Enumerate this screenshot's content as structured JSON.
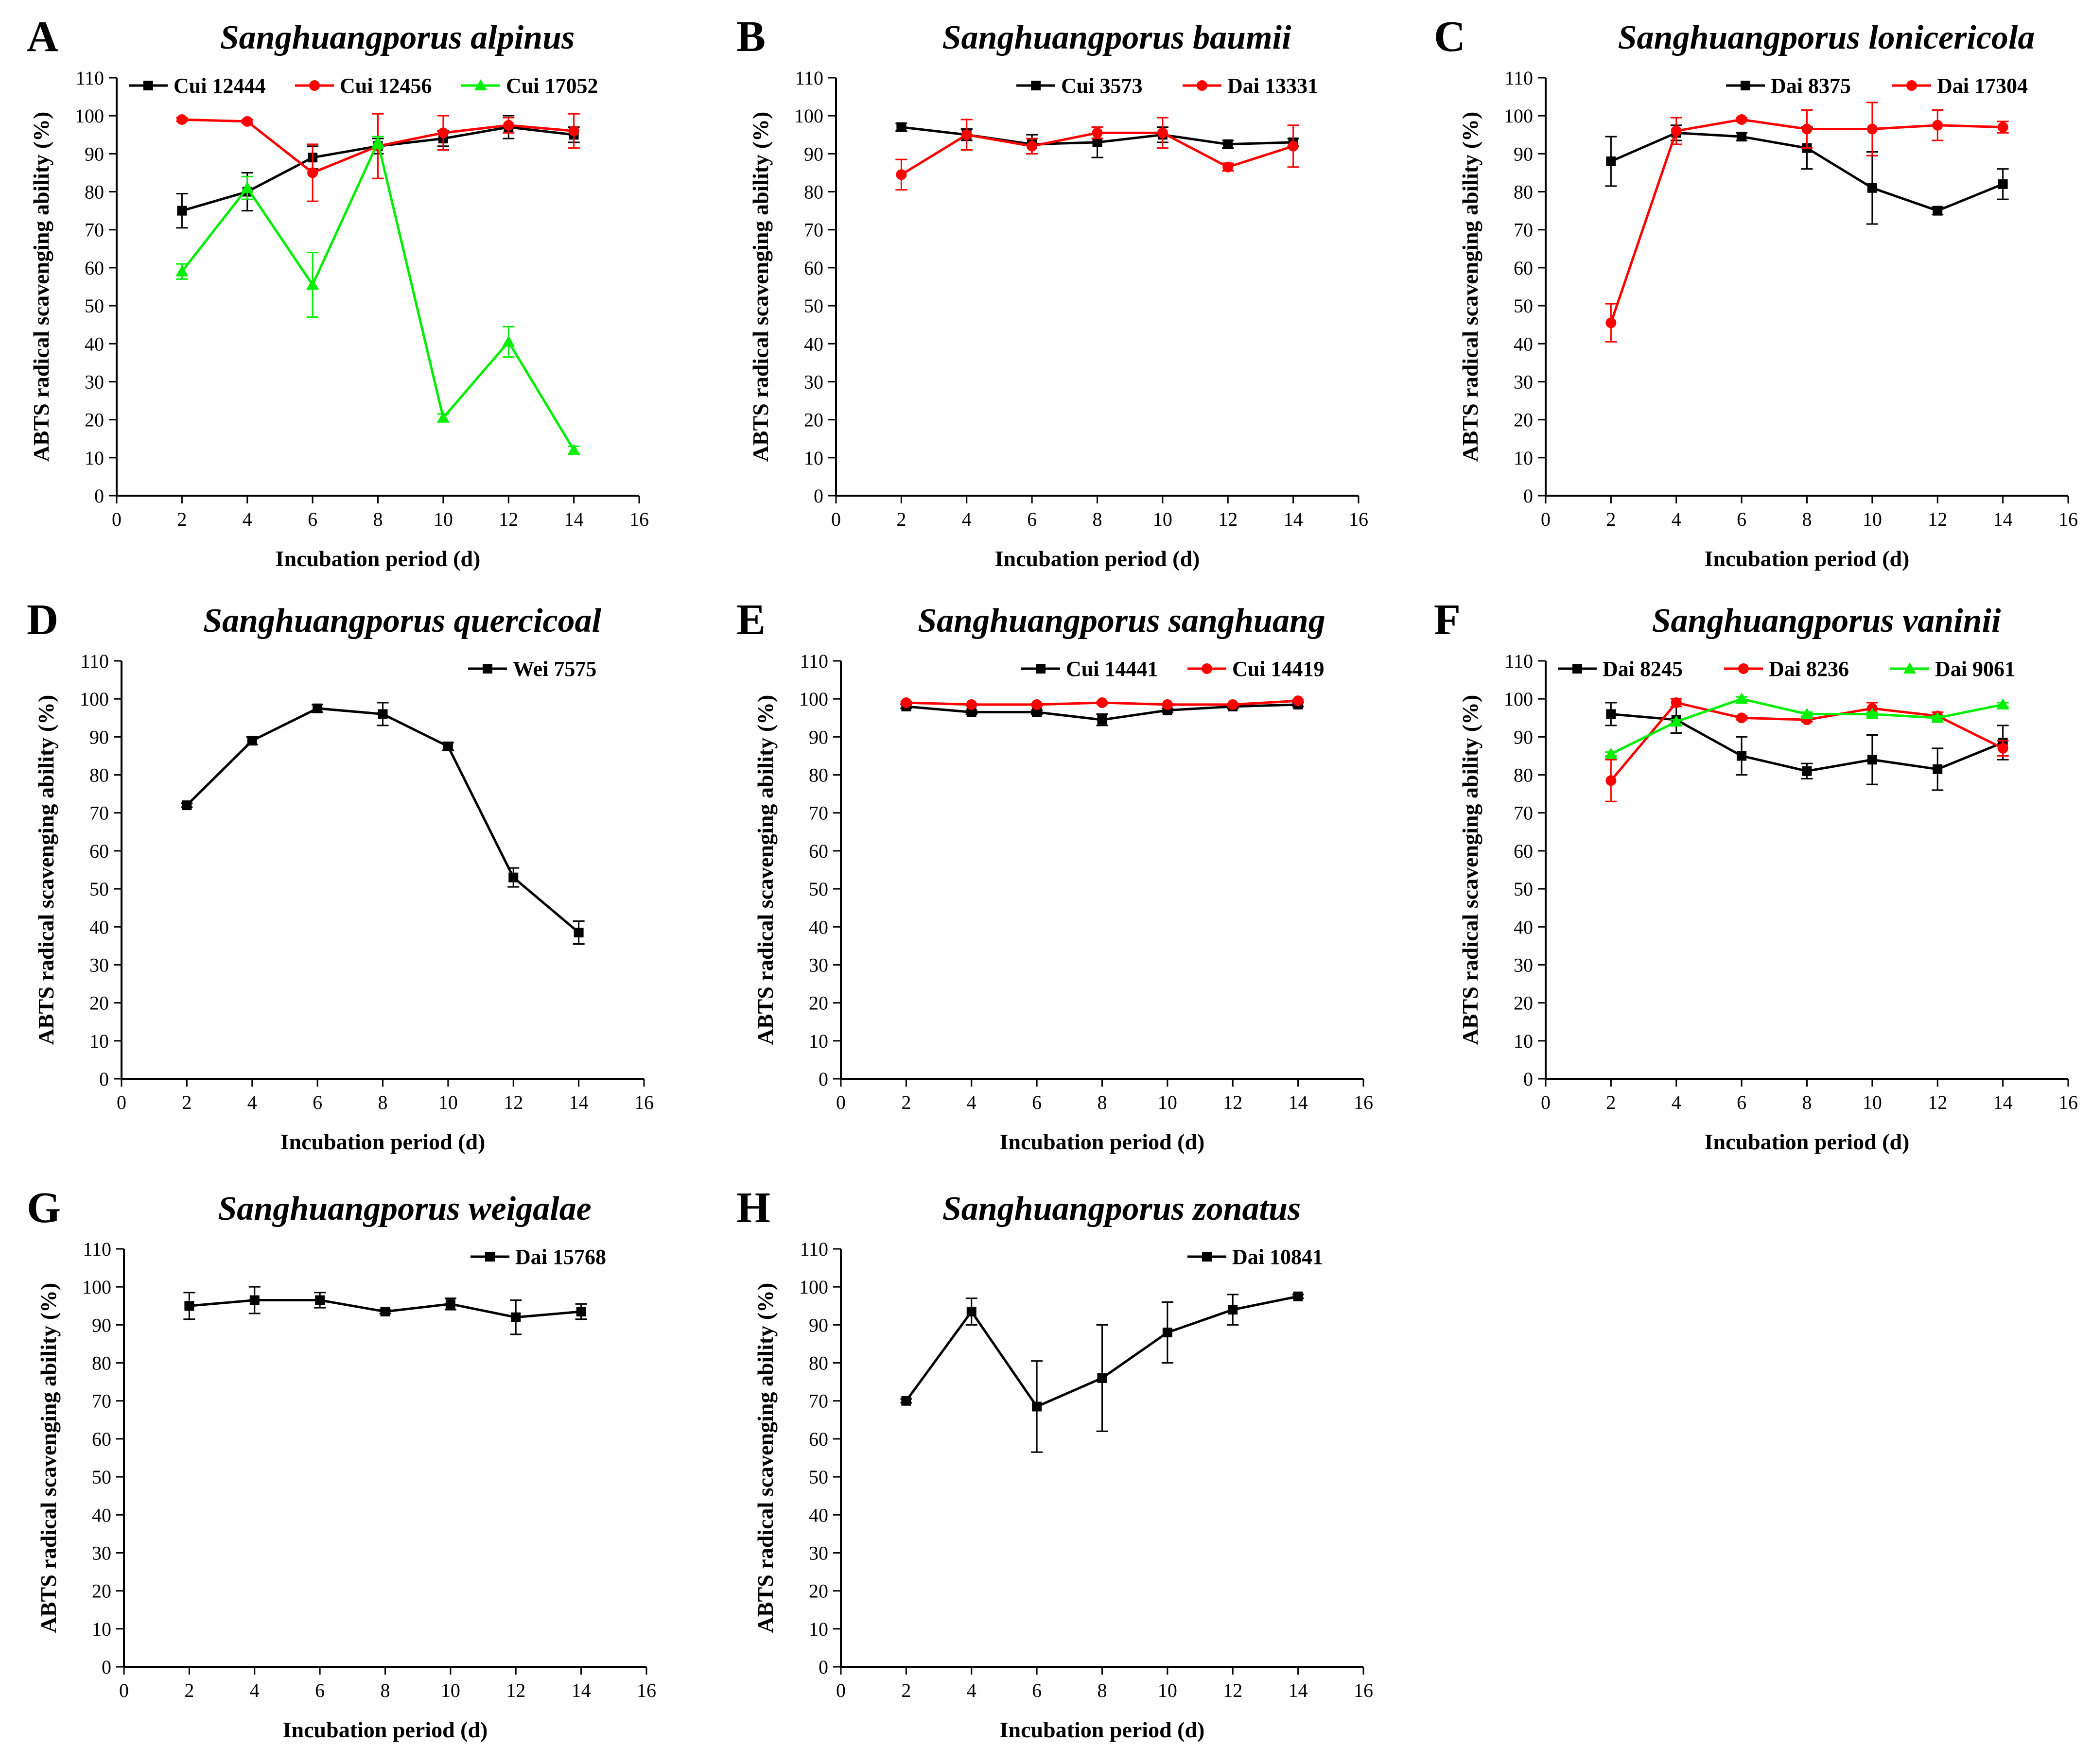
{
  "figure": {
    "background": "#ffffff"
  },
  "colors": {
    "black": "#000000",
    "red": "#ff0000",
    "green": "#00ee00"
  },
  "chart_data": [
    {
      "id": "A",
      "type": "line",
      "letter": "A",
      "title": "Sanghuangporus alpinus",
      "xlabel": "Incubation period (d)",
      "ylabel": "ABTS radical scavenging ability (%)",
      "xlim": [
        0,
        16
      ],
      "ylim": [
        0,
        110
      ],
      "xticks": [
        0,
        2,
        4,
        6,
        8,
        10,
        12,
        14,
        16
      ],
      "yticks": [
        0,
        10,
        20,
        30,
        40,
        50,
        60,
        70,
        80,
        90,
        100,
        110
      ],
      "x": [
        2,
        4,
        6,
        8,
        10,
        12,
        14
      ],
      "legend_position": "top",
      "series": [
        {
          "name": "Cui 12444",
          "color": "#000000",
          "marker": "square",
          "values": [
            75,
            80,
            89,
            92,
            94,
            97,
            95
          ],
          "errors": [
            4.5,
            5,
            3,
            2,
            2,
            3,
            2
          ]
        },
        {
          "name": "Cui 12456",
          "color": "#ff0000",
          "marker": "circle",
          "values": [
            99,
            98.5,
            85,
            92,
            95.5,
            97.5,
            96
          ],
          "errors": [
            0.5,
            0.5,
            7.5,
            8.5,
            4.5,
            2,
            4.5
          ]
        },
        {
          "name": "Cui 17052",
          "color": "#00ee00",
          "marker": "triangle",
          "values": [
            59,
            81,
            55.5,
            93,
            20.5,
            40.5,
            12
          ],
          "errors": [
            2,
            3,
            8.5,
            1.5,
            1,
            4,
            1
          ]
        }
      ]
    },
    {
      "id": "B",
      "type": "line",
      "letter": "B",
      "title": "Sanghuangporus baumii",
      "xlabel": "Incubation period (d)",
      "ylabel": "ABTS radical scavenging ability (%)",
      "xlim": [
        0,
        16
      ],
      "ylim": [
        0,
        110
      ],
      "xticks": [
        0,
        2,
        4,
        6,
        8,
        10,
        12,
        14,
        16
      ],
      "yticks": [
        0,
        10,
        20,
        30,
        40,
        50,
        60,
        70,
        80,
        90,
        100,
        110
      ],
      "x": [
        2,
        4,
        6,
        8,
        10,
        12,
        14
      ],
      "legend_position": "top-right",
      "series": [
        {
          "name": "Cui 3573",
          "color": "#000000",
          "marker": "square",
          "values": [
            97,
            95,
            92.5,
            93,
            95,
            92.5,
            93
          ],
          "errors": [
            1,
            1.5,
            2.5,
            4,
            2,
            1,
            1
          ]
        },
        {
          "name": "Dai 13331",
          "color": "#ff0000",
          "marker": "circle",
          "values": [
            84.5,
            95,
            92,
            95.5,
            95.5,
            86.5,
            92
          ],
          "errors": [
            4,
            4,
            2,
            1.5,
            4,
            1,
            5.5
          ]
        }
      ]
    },
    {
      "id": "C",
      "type": "line",
      "letter": "C",
      "title": "Sanghuangporus lonicericola",
      "xlabel": "Incubation period (d)",
      "ylabel": "ABTS radical scavenging ability (%)",
      "xlim": [
        0,
        16
      ],
      "ylim": [
        0,
        110
      ],
      "xticks": [
        0,
        2,
        4,
        6,
        8,
        10,
        12,
        14,
        16
      ],
      "yticks": [
        0,
        10,
        20,
        30,
        40,
        50,
        60,
        70,
        80,
        90,
        100,
        110
      ],
      "x": [
        2,
        4,
        6,
        8,
        10,
        12,
        14
      ],
      "legend_position": "top-right",
      "series": [
        {
          "name": "Dai 8375",
          "color": "#000000",
          "marker": "square",
          "values": [
            88,
            95.5,
            94.5,
            91.5,
            81,
            75,
            82
          ],
          "errors": [
            6.5,
            2,
            1,
            5.5,
            9.5,
            1,
            4
          ]
        },
        {
          "name": "Dai 17304",
          "color": "#ff0000",
          "marker": "circle",
          "values": [
            45.5,
            96,
            99,
            96.5,
            96.5,
            97.5,
            97
          ],
          "errors": [
            5,
            3.5,
            0.5,
            5,
            7,
            4,
            1.5
          ]
        }
      ]
    },
    {
      "id": "D",
      "type": "line",
      "letter": "D",
      "title": "Sanghuangporus quercicoal",
      "xlabel": "Incubation period (d)",
      "ylabel": "ABTS radical scavenging ability (%)",
      "xlim": [
        0,
        16
      ],
      "ylim": [
        0,
        110
      ],
      "xticks": [
        0,
        2,
        4,
        6,
        8,
        10,
        12,
        14,
        16
      ],
      "yticks": [
        0,
        10,
        20,
        30,
        40,
        50,
        60,
        70,
        80,
        90,
        100,
        110
      ],
      "x": [
        2,
        4,
        6,
        8,
        10,
        12,
        14
      ],
      "legend_position": "top-right",
      "series": [
        {
          "name": "Wei 7575",
          "color": "#000000",
          "marker": "square",
          "values": [
            72,
            89,
            97.5,
            96,
            87.5,
            53,
            38.5
          ],
          "errors": [
            0.5,
            1,
            1,
            3,
            1,
            2.5,
            3
          ]
        }
      ]
    },
    {
      "id": "E",
      "type": "line",
      "letter": "E",
      "title": "Sanghuangporus sanghuang",
      "xlabel": "Incubation period (d)",
      "ylabel": "ABTS radical scavenging ability (%)",
      "xlim": [
        0,
        16
      ],
      "ylim": [
        0,
        110
      ],
      "xticks": [
        0,
        2,
        4,
        6,
        8,
        10,
        12,
        14,
        16
      ],
      "yticks": [
        0,
        10,
        20,
        30,
        40,
        50,
        60,
        70,
        80,
        90,
        100,
        110
      ],
      "x": [
        2,
        4,
        6,
        8,
        10,
        12,
        14
      ],
      "legend_position": "top-right",
      "series": [
        {
          "name": "Cui 14441",
          "color": "#000000",
          "marker": "square",
          "values": [
            98,
            96.5,
            96.5,
            94.5,
            97,
            98,
            98.5
          ],
          "errors": [
            0.5,
            0.5,
            0.5,
            1.5,
            0.5,
            0.5,
            0.5
          ]
        },
        {
          "name": "Cui 14419",
          "color": "#ff0000",
          "marker": "circle",
          "values": [
            99,
            98.5,
            98.5,
            99,
            98.5,
            98.5,
            99.5
          ],
          "errors": [
            0.3,
            0.3,
            0.3,
            0.3,
            0.3,
            0.3,
            0.3
          ]
        }
      ]
    },
    {
      "id": "F",
      "type": "line",
      "letter": "F",
      "title": "Sanghuangporus vaninii",
      "xlabel": "Incubation period (d)",
      "ylabel": "ABTS radical scavenging ability (%)",
      "xlim": [
        0,
        16
      ],
      "ylim": [
        0,
        110
      ],
      "xticks": [
        0,
        2,
        4,
        6,
        8,
        10,
        12,
        14,
        16
      ],
      "yticks": [
        0,
        10,
        20,
        30,
        40,
        50,
        60,
        70,
        80,
        90,
        100,
        110
      ],
      "x": [
        2,
        4,
        6,
        8,
        10,
        12,
        14
      ],
      "legend_position": "top",
      "series": [
        {
          "name": "Dai 8245",
          "color": "#000000",
          "marker": "square",
          "values": [
            96,
            94.5,
            85,
            81,
            84,
            81.5,
            88.5
          ],
          "errors": [
            3,
            3.5,
            5,
            2,
            6.5,
            5.5,
            4.5
          ]
        },
        {
          "name": "Dai 8236",
          "color": "#ff0000",
          "marker": "circle",
          "values": [
            78.5,
            99,
            95,
            94.5,
            97.5,
            95.5,
            87
          ],
          "errors": [
            5.5,
            1,
            0.5,
            0.5,
            1.5,
            1,
            2
          ]
        },
        {
          "name": "Dai 9061",
          "color": "#00ee00",
          "marker": "triangle",
          "values": [
            85.5,
            94,
            100,
            96,
            96,
            95,
            98.5
          ],
          "errors": [
            0.5,
            0.5,
            0.5,
            0.5,
            0.5,
            0.5,
            0.5
          ]
        }
      ]
    },
    {
      "id": "G",
      "type": "line",
      "letter": "G",
      "title": "Sanghuangporus weigalae",
      "xlabel": "Incubation period (d)",
      "ylabel": "ABTS radical scavenging ability (%)",
      "xlim": [
        0,
        16
      ],
      "ylim": [
        0,
        110
      ],
      "xticks": [
        0,
        2,
        4,
        6,
        8,
        10,
        12,
        14,
        16
      ],
      "yticks": [
        0,
        10,
        20,
        30,
        40,
        50,
        60,
        70,
        80,
        90,
        100,
        110
      ],
      "x": [
        2,
        4,
        6,
        8,
        10,
        12,
        14
      ],
      "legend_position": "top-right",
      "series": [
        {
          "name": "Dai 15768",
          "color": "#000000",
          "marker": "square",
          "values": [
            95,
            96.5,
            96.5,
            93.5,
            95.5,
            92,
            93.5
          ],
          "errors": [
            3.5,
            3.5,
            2,
            0.5,
            1.5,
            4.5,
            2
          ]
        }
      ]
    },
    {
      "id": "H",
      "type": "line",
      "letter": "H",
      "title": "Sanghuangporus zonatus",
      "xlabel": "Incubation period (d)",
      "ylabel": "ABTS radical scavenging ability (%)",
      "xlim": [
        0,
        16
      ],
      "ylim": [
        0,
        110
      ],
      "xticks": [
        0,
        2,
        4,
        6,
        8,
        10,
        12,
        14,
        16
      ],
      "yticks": [
        0,
        10,
        20,
        30,
        40,
        50,
        60,
        70,
        80,
        90,
        100,
        110
      ],
      "x": [
        2,
        4,
        6,
        8,
        10,
        12,
        14
      ],
      "legend_position": "top-right",
      "series": [
        {
          "name": "Dai 10841",
          "color": "#000000",
          "marker": "square",
          "values": [
            70,
            93.5,
            68.5,
            76,
            88,
            94,
            97.5
          ],
          "errors": [
            0.5,
            3.5,
            12,
            14,
            8,
            4,
            0.5
          ]
        }
      ]
    }
  ]
}
